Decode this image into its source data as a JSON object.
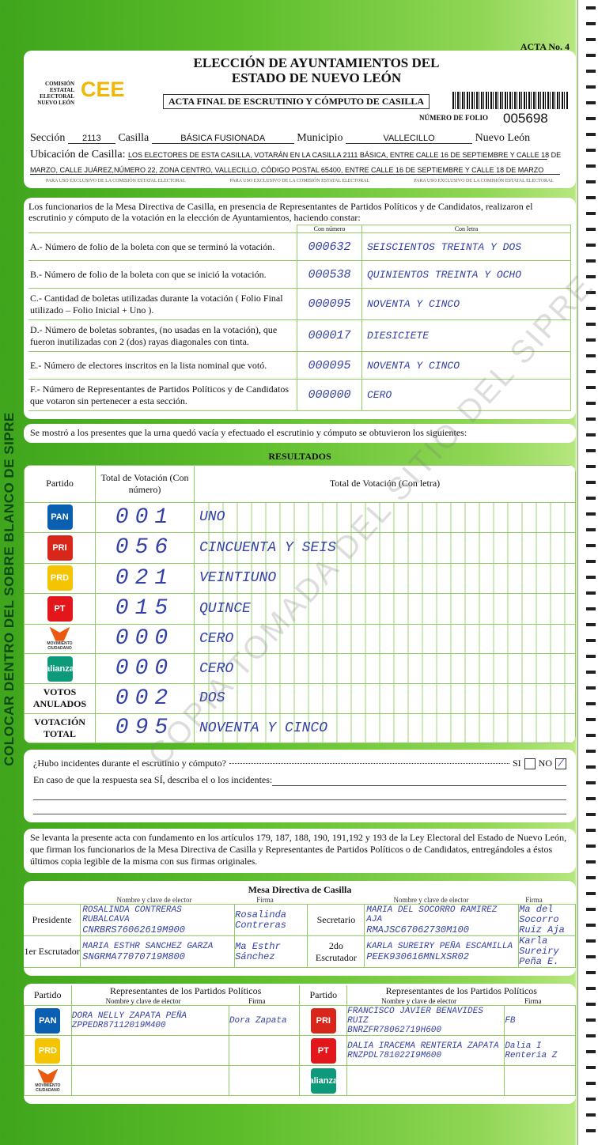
{
  "header": {
    "acta_no": "ACTA No. 4",
    "title1": "ELECCIÓN DE AYUNTAMIENTOS DEL",
    "title2": "ESTADO DE NUEVO LEÓN",
    "org_text": "COMISIÓN ESTATAL ELECTORAL NUEVO LEÓN",
    "org_logo": "CEE",
    "subtitle": "ACTA FINAL DE ESCRUTINIO Y CÓMPUTO DE CASILLA",
    "folio_label": "NÚMERO DE FOLIO",
    "folio": "005698",
    "seccion_label": "Sección",
    "seccion": "2113",
    "casilla_label": "Casilla",
    "casilla": "BÁSICA FUSIONADA",
    "municipio_label": "Municipio",
    "municipio": "VALLECILLO",
    "estado": "Nuevo León",
    "ubicacion_label": "Ubicación de Casilla:",
    "ubicacion1": "LOS ELECTORES DE ESTA CASILLA, VOTARÁN EN LA CASILLA 2111 BÁSICA, ENTRE CALLE 16 DE SEPTIEMBRE Y CALLE 18 DE",
    "ubicacion2": "MARZO, CALLE JUÁREZ,NÚMERO 22, ZONA CENTRO, VALLECILLO, CÓDIGO POSTAL 65400, ENTRE CALLE 16 DE SEPTIEMBRE Y CALLE 18 DE MARZO",
    "exclusive": "PARA USO EXCLUSIVO DE LA COMISIÓN ESTATAL ELECTORAL"
  },
  "intro": {
    "text": "Los funcionarios de la Mesa Directiva de Casilla, en presencia de Representantes de Partidos Políticos  y de Candidatos, realizaron el escrutinio y cómputo de la votación en la elección de Ayuntamientos, haciendo constar:",
    "col_num": "Con número",
    "col_letra": "Con letra",
    "rows": [
      {
        "label": "A.- Número de folio de la boleta con que se terminó la votación.",
        "num": "000632",
        "letra": "SEISCIENTOS TREINTA Y DOS"
      },
      {
        "label": "B.- Número de folio de la boleta con que se inició la votación.",
        "num": "000538",
        "letra": "QUINIENTOS TREINTA Y OCHO"
      },
      {
        "label": "C.- Cantidad de boletas utilizadas durante la votación ( Folio Final utilizado – Folio Inicial + Uno ).",
        "num": "000095",
        "letra": "NOVENTA Y CINCO"
      },
      {
        "label": "D.- Número de boletas sobrantes, (no usadas en la votación), que fueron inutilizadas con 2 (dos) rayas diagonales con tinta.",
        "num": "000017",
        "letra": "DIESICIETE"
      },
      {
        "label": "E.- Número de electores inscritos en la lista nominal que votó.",
        "num": "000095",
        "letra": "NOVENTA Y CINCO"
      },
      {
        "label": "F.- Número de Representantes de Partidos Políticos y de Candidatos que votaron sin pertenecer a esta sección.",
        "num": "000000",
        "letra": "CERO"
      }
    ]
  },
  "shown": "Se mostró a los presentes que la urna quedó vacía y efectuado el escrutinio y cómputo se obtuvieron los siguientes:",
  "results": {
    "title": "RESULTADOS",
    "col_partido": "Partido",
    "col_num": "Total de Votación (Con número)",
    "col_letra": "Total de Votación (Con letra)",
    "rows": [
      {
        "party": "PAN",
        "color": "#0b5fb0",
        "num": "001",
        "letra": "UNO"
      },
      {
        "party": "PRI-PVEM",
        "color": "#d8261b",
        "num": "056",
        "letra": "CINCUENTA Y SEIS"
      },
      {
        "party": "PRD",
        "color": "#f5c400",
        "num": "021",
        "letra": "VEINTIUNO"
      },
      {
        "party": "PT",
        "color": "#e3161b",
        "num": "015",
        "letra": "QUINCE"
      },
      {
        "party": "MOVIMIENTO CIUDADANO",
        "color": "#e9590f",
        "num": "000",
        "letra": "CERO"
      },
      {
        "party": "alianza",
        "color": "#0d9a7a",
        "num": "000",
        "letra": "CERO"
      },
      {
        "party": "VOTOS ANULADOS",
        "num": "002",
        "letra": "DOS"
      },
      {
        "party": "VOTACIÓN TOTAL",
        "num": "095",
        "letra": "NOVENTA Y CINCO"
      }
    ]
  },
  "incidents": {
    "question": "¿Hubo incidentes durante el escrutinio y cómputo?",
    "si": "SI",
    "no": "NO",
    "no_mark": "/",
    "describe": "En caso de que la respuesta sea SÍ, describa el o los incidentes:"
  },
  "legal": "Se levanta la presente acta con fundamento en los artículos 179, 187, 188, 190, 191,192 y 193 de la Ley Electoral del Estado de Nuevo León, que firman los funcionarios de la Mesa Directiva de Casilla y Representantes de  Partidos Políticos o de Candidatos, entregándoles a éstos últimos copia legible de la misma con sus firmas originales.",
  "mesa": {
    "title": "Mesa Directiva de Casilla",
    "col_name": "Nombre y clave de elector",
    "col_firma": "Firma",
    "presidente": {
      "role": "Presidente",
      "name": "ROSALINDA CONTRERAS RUBALCAVA",
      "clave": "CNRBRS76062619M900",
      "firma": "Rosalinda Contreras"
    },
    "secretario": {
      "role": "Secretario",
      "name": "MARIA DEL SOCORRO RAMIREZ AJA",
      "clave": "RMAJSC67062730M100",
      "firma": "Ma del Socorro Ruiz Aja"
    },
    "escrutador1": {
      "role": "1er Escrutador",
      "name": "MARIA ESTHR SANCHEZ GARZA",
      "clave": "SNGRMA77070719M800",
      "firma": "Ma Esthr Sánchez"
    },
    "escrutador2": {
      "role": "2do Escrutador",
      "name": "KARLA SUREIRY PEÑA ESCAMILLA",
      "clave": "PEEK930616MNLXSR02",
      "firma": "Karla Sureiry Peña E."
    }
  },
  "reps": {
    "col_partido": "Partido",
    "col_title": "Representantes de los Partidos Políticos",
    "col_name": "Nombre y clave de elector",
    "col_firma": "Firma",
    "left": [
      {
        "party": "PAN",
        "color": "#0b5fb0",
        "name": "DORA NELLY ZAPATA PEÑA",
        "clave": "ZPPEDR87112019M400",
        "firma": "Dora Zapata"
      },
      {
        "party": "PRD",
        "color": "#f5c400",
        "name": "",
        "clave": "",
        "firma": ""
      },
      {
        "party": "MOVIMIENTO CIUDADANO",
        "color": "#e9590f",
        "name": "",
        "clave": "",
        "firma": ""
      }
    ],
    "right": [
      {
        "party": "PRI-PVEM",
        "color": "#d8261b",
        "name": "FRANCISCO JAVIER BENAVIDES RUIZ",
        "clave": "BNRZFR78062719H600",
        "firma": "FB"
      },
      {
        "party": "PT",
        "color": "#e3161b",
        "name": "DALIA IRACEMA RENTERIA ZAPATA",
        "clave": "RNZPDL781022I9M600",
        "firma": "Dalia I Renteria Z"
      },
      {
        "party": "alianza",
        "color": "#0d9a7a",
        "name": "",
        "clave": "",
        "firma": ""
      }
    ]
  },
  "side_text": "COLOCAR DENTRO DEL SOBRE BLANCO DE SIPRE",
  "watermark": "COPIA TOMADA DEL SITIO DEL SIPRE"
}
